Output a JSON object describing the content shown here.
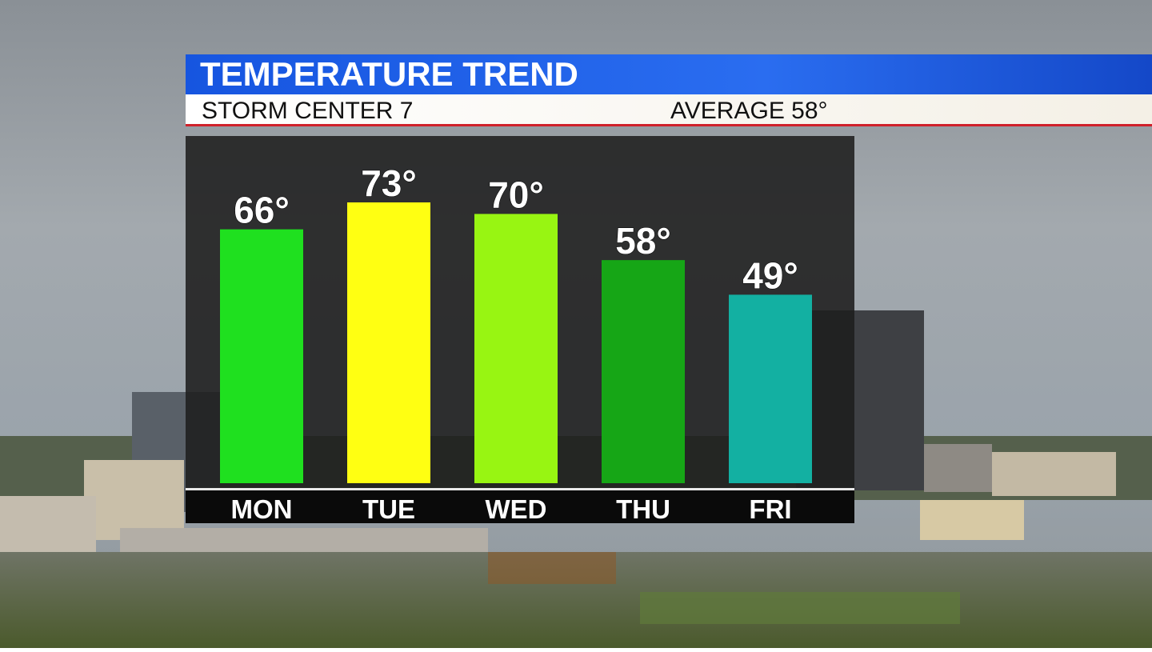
{
  "chart_data": {
    "type": "bar",
    "title": "TEMPERATURE TREND",
    "subtitle": "STORM CENTER 7",
    "annotation": "AVERAGE 58°",
    "categories": [
      "MON",
      "TUE",
      "WED",
      "THU",
      "FRI"
    ],
    "values": [
      66,
      73,
      70,
      58,
      49
    ],
    "value_labels": [
      "66°",
      "73°",
      "70°",
      "58°",
      "49°"
    ],
    "colors": [
      "#1fe01f",
      "#ffff12",
      "#98f512",
      "#16a616",
      "#13b0a2"
    ]
  }
}
